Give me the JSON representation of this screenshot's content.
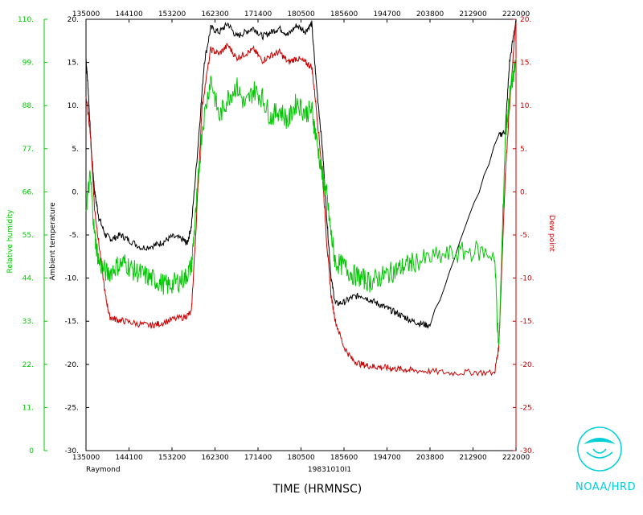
{
  "chart_data": {
    "type": "line",
    "bottom_label_left": "Raymond",
    "bottom_label_center": "19831010I1",
    "xlabel": "TIME (HRMNSC)",
    "x_ticks": [
      "135000",
      "144100",
      "153200",
      "162300",
      "171400",
      "180500",
      "185600",
      "194700",
      "203800",
      "212900",
      "222000"
    ],
    "top_x_ticks": [
      "135000",
      "144100",
      "153200",
      "162300",
      "171400",
      "180500",
      "185600",
      "194700",
      "203800",
      "212900",
      "222000"
    ],
    "rh_axis": {
      "label": "Relative humidity",
      "color": "#00c800",
      "range": [
        0,
        110
      ],
      "ticks": [
        "0",
        "11.",
        "22.",
        "33.",
        "44.",
        "55.",
        "66.",
        "77.",
        "88.",
        "99.",
        "110."
      ]
    },
    "temp_axis": {
      "label": "Ambient temperature",
      "color": "#000000",
      "range": [
        -30,
        20
      ],
      "ticks": [
        "-30.",
        "-25.",
        "-20.",
        "-15.",
        "-10.",
        "-5.",
        "0.",
        "5.",
        "10.",
        "15.",
        "20."
      ]
    },
    "dew_axis": {
      "label": "Dew point",
      "color": "#cc0000",
      "range": [
        -30,
        20
      ],
      "ticks": [
        "-30.",
        "-25.",
        "-20.",
        "-15.",
        "-10.",
        "-5.",
        "0.",
        "5.",
        "10.",
        "15.",
        "20."
      ]
    },
    "series": [
      {
        "color": "#000000",
        "axis": "temp",
        "points": [
          [
            0,
            15.5
          ],
          [
            0.005,
            12
          ],
          [
            0.012,
            5
          ],
          [
            0.02,
            0
          ],
          [
            0.03,
            -3
          ],
          [
            0.045,
            -5
          ],
          [
            0.06,
            -5.5
          ],
          [
            0.08,
            -5
          ],
          [
            0.1,
            -5.6
          ],
          [
            0.13,
            -6.5
          ],
          [
            0.16,
            -6.2
          ],
          [
            0.18,
            -5.8
          ],
          [
            0.2,
            -5.2
          ],
          [
            0.225,
            -5.5
          ],
          [
            0.235,
            -6
          ],
          [
            0.245,
            -4
          ],
          [
            0.26,
            5
          ],
          [
            0.275,
            15
          ],
          [
            0.29,
            19
          ],
          [
            0.31,
            18.5
          ],
          [
            0.33,
            19.5
          ],
          [
            0.35,
            18
          ],
          [
            0.37,
            18.5
          ],
          [
            0.39,
            19
          ],
          [
            0.41,
            18
          ],
          [
            0.43,
            18.5
          ],
          [
            0.45,
            19
          ],
          [
            0.47,
            18.2
          ],
          [
            0.49,
            19.3
          ],
          [
            0.51,
            18.6
          ],
          [
            0.525,
            19.5
          ],
          [
            0.535,
            13
          ],
          [
            0.55,
            5
          ],
          [
            0.56,
            -3
          ],
          [
            0.57,
            -10
          ],
          [
            0.58,
            -13
          ],
          [
            0.6,
            -12.8
          ],
          [
            0.62,
            -12.2
          ],
          [
            0.64,
            -12
          ],
          [
            0.66,
            -12.5
          ],
          [
            0.68,
            -13
          ],
          [
            0.7,
            -13.5
          ],
          [
            0.72,
            -14
          ],
          [
            0.74,
            -14.5
          ],
          [
            0.76,
            -15
          ],
          [
            0.78,
            -15.3
          ],
          [
            0.8,
            -15.5
          ],
          [
            0.96,
            6.5
          ],
          [
            0.975,
            7
          ],
          [
            0.985,
            15
          ],
          [
            1.0,
            20
          ]
        ]
      },
      {
        "color": "#cc0000",
        "axis": "dew",
        "points": [
          [
            0,
            11
          ],
          [
            0.01,
            7
          ],
          [
            0.02,
            -2
          ],
          [
            0.03,
            -6
          ],
          [
            0.045,
            -12
          ],
          [
            0.055,
            -14.5
          ],
          [
            0.07,
            -14.8
          ],
          [
            0.09,
            -15
          ],
          [
            0.12,
            -15.3
          ],
          [
            0.15,
            -15.5
          ],
          [
            0.17,
            -15.3
          ],
          [
            0.2,
            -14.8
          ],
          [
            0.23,
            -14.5
          ],
          [
            0.245,
            -14
          ],
          [
            0.255,
            -5
          ],
          [
            0.27,
            10
          ],
          [
            0.29,
            16.5
          ],
          [
            0.31,
            16
          ],
          [
            0.33,
            17
          ],
          [
            0.35,
            15.5
          ],
          [
            0.37,
            16
          ],
          [
            0.39,
            16.5
          ],
          [
            0.41,
            15.2
          ],
          [
            0.43,
            15.8
          ],
          [
            0.45,
            16.2
          ],
          [
            0.47,
            15
          ],
          [
            0.49,
            15.5
          ],
          [
            0.51,
            15
          ],
          [
            0.525,
            14.5
          ],
          [
            0.535,
            10
          ],
          [
            0.55,
            2
          ],
          [
            0.56,
            -6
          ],
          [
            0.57,
            -12
          ],
          [
            0.58,
            -15
          ],
          [
            0.6,
            -18
          ],
          [
            0.62,
            -19.5
          ],
          [
            0.64,
            -20
          ],
          [
            0.66,
            -20.2
          ],
          [
            0.68,
            -20.3
          ],
          [
            0.7,
            -20.4
          ],
          [
            0.72,
            -20.5
          ],
          [
            0.74,
            -20.6
          ],
          [
            0.76,
            -20.7
          ],
          [
            0.8,
            -20.8
          ],
          [
            0.85,
            -21
          ],
          [
            0.9,
            -20.9
          ],
          [
            0.95,
            -21
          ],
          [
            0.96,
            -18
          ],
          [
            0.975,
            2
          ],
          [
            0.985,
            10
          ],
          [
            1.0,
            20
          ]
        ]
      },
      {
        "color": "#00c800",
        "axis": "rh",
        "points": [
          [
            0,
            62
          ],
          [
            0.01,
            70
          ],
          [
            0.02,
            55
          ],
          [
            0.03,
            48
          ],
          [
            0.05,
            45
          ],
          [
            0.07,
            47
          ],
          [
            0.09,
            48
          ],
          [
            0.11,
            46
          ],
          [
            0.13,
            45
          ],
          [
            0.15,
            44
          ],
          [
            0.17,
            43
          ],
          [
            0.19,
            42
          ],
          [
            0.21,
            43
          ],
          [
            0.23,
            44
          ],
          [
            0.245,
            47
          ],
          [
            0.255,
            60
          ],
          [
            0.27,
            82
          ],
          [
            0.29,
            95
          ],
          [
            0.31,
            85
          ],
          [
            0.33,
            90
          ],
          [
            0.35,
            93
          ],
          [
            0.37,
            88
          ],
          [
            0.39,
            92
          ],
          [
            0.41,
            90
          ],
          [
            0.43,
            85
          ],
          [
            0.45,
            87
          ],
          [
            0.47,
            84
          ],
          [
            0.49,
            89
          ],
          [
            0.51,
            86
          ],
          [
            0.525,
            87
          ],
          [
            0.535,
            80
          ],
          [
            0.55,
            70
          ],
          [
            0.56,
            65
          ],
          [
            0.57,
            55
          ],
          [
            0.58,
            48
          ],
          [
            0.6,
            47
          ],
          [
            0.62,
            45
          ],
          [
            0.64,
            44
          ],
          [
            0.66,
            43
          ],
          [
            0.68,
            44
          ],
          [
            0.7,
            45
          ],
          [
            0.72,
            46
          ],
          [
            0.74,
            47
          ],
          [
            0.76,
            48
          ],
          [
            0.8,
            49
          ],
          [
            0.85,
            50
          ],
          [
            0.9,
            51
          ],
          [
            0.95,
            50
          ],
          [
            0.96,
            25
          ],
          [
            0.975,
            80
          ],
          [
            0.985,
            90
          ],
          [
            1.0,
            100
          ]
        ]
      }
    ]
  }
}
